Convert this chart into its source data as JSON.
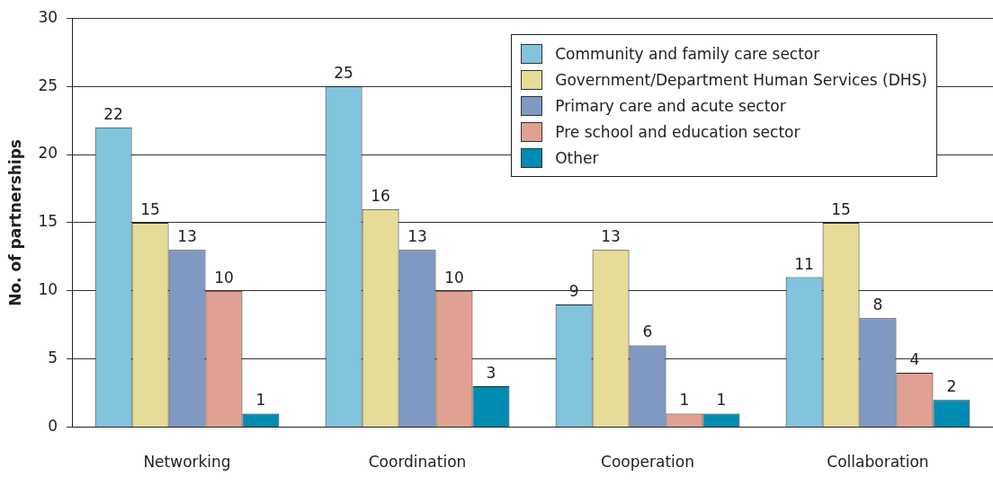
{
  "chart_data": {
    "type": "bar",
    "ylabel": "No. of partnerships",
    "categories": [
      "Networking",
      "Coordination",
      "Cooperation",
      "Collaboration"
    ],
    "series": [
      {
        "name": "Community and family care sector",
        "color": "#80c4de",
        "values": [
          22,
          25,
          9,
          11
        ]
      },
      {
        "name": "Government/Department Human Services (DHS)",
        "color": "#e6dc98",
        "values": [
          15,
          16,
          13,
          15
        ]
      },
      {
        "name": "Primary care and acute sector",
        "color": "#7f99c2",
        "values": [
          13,
          13,
          6,
          8
        ]
      },
      {
        "name": "Pre school and education sector",
        "color": "#e0a092",
        "values": [
          10,
          10,
          1,
          4
        ]
      },
      {
        "name": "Other",
        "color": "#008cb2",
        "values": [
          1,
          3,
          1,
          2
        ]
      }
    ],
    "ylim": [
      0,
      30
    ],
    "yticks": [
      0,
      5,
      10,
      15,
      20,
      25,
      30
    ],
    "grid": "y",
    "legend": "top right",
    "data_labels": true
  }
}
